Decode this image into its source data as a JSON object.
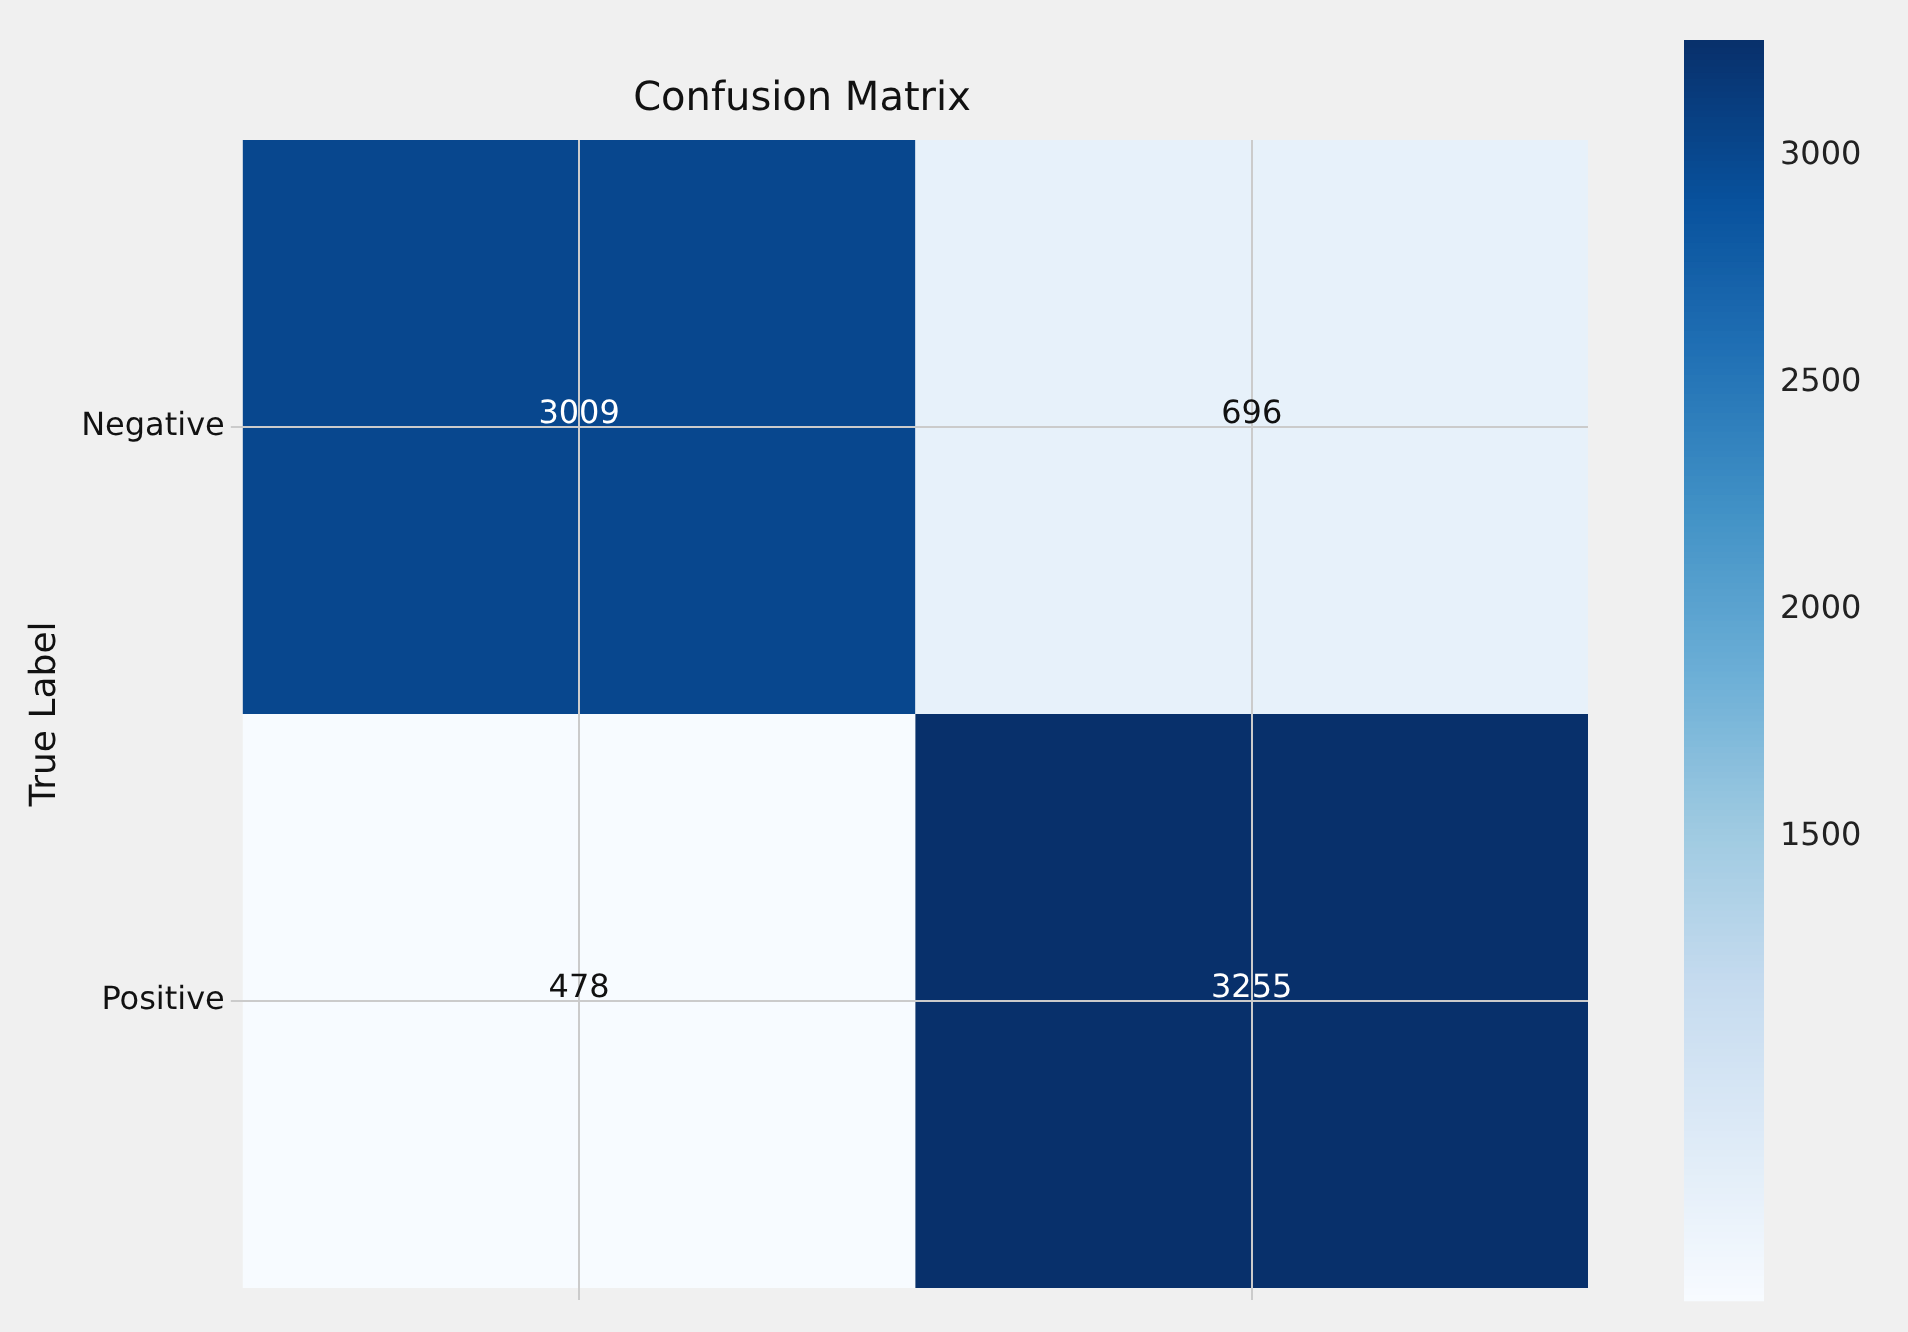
{
  "chart_data": {
    "type": "heatmap",
    "title": "Confusion Matrix",
    "ylabel": "True Label",
    "categories": [
      null,
      null
    ],
    "y_categories": [
      "Negative",
      "Positive"
    ],
    "cells": [
      [
        3009,
        696
      ],
      [
        478,
        3255
      ]
    ],
    "data_labels": true,
    "clim": [
      478,
      3255
    ],
    "cticks": [
      1500,
      2000,
      2500,
      3000
    ],
    "grid": true,
    "tick_labels": "y"
  }
}
